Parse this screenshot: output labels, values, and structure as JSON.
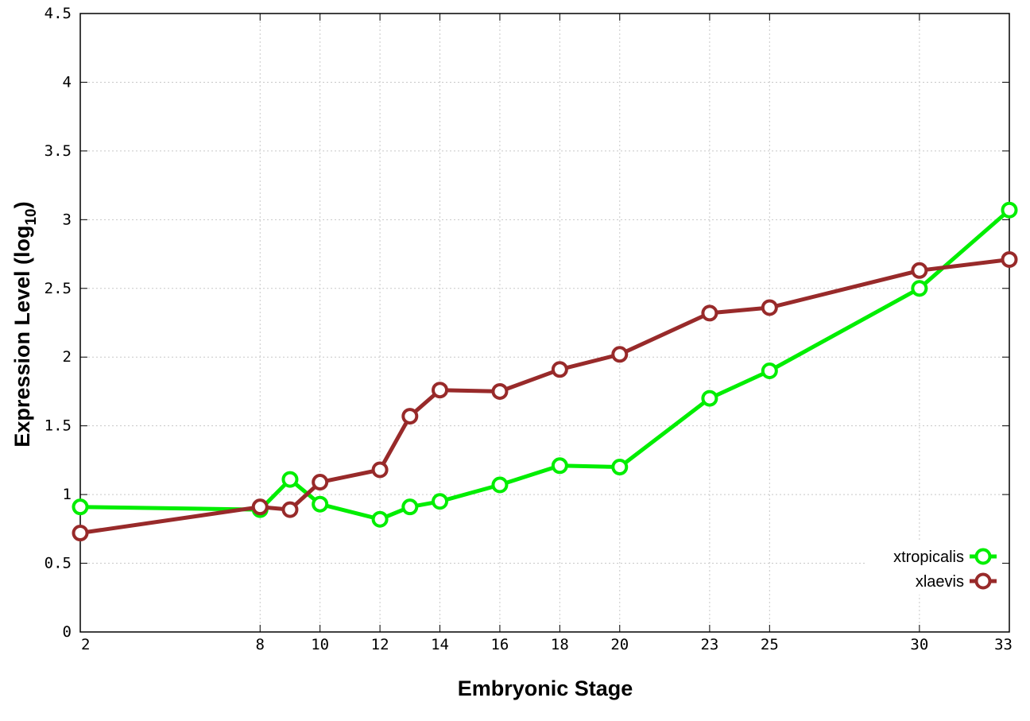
{
  "chart_data": {
    "type": "line",
    "title": "",
    "xlabel": "Embryonic Stage",
    "ylabel": "Expression Level (log",
    "ylabel_sub": "10",
    "ylabel_close": ")",
    "x": [
      2,
      8,
      9,
      10,
      12,
      13,
      14,
      16,
      18,
      20,
      23,
      25,
      30,
      33
    ],
    "xticks": [
      2,
      8,
      10,
      12,
      14,
      16,
      18,
      20,
      23,
      25,
      30,
      33
    ],
    "xlim": [
      2,
      33
    ],
    "ylim": [
      0,
      4.5
    ],
    "yticks": [
      "0",
      "0.5",
      "1",
      "1.5",
      "2",
      "2.5",
      "3",
      "3.5",
      "4",
      "4.5"
    ],
    "grid": true,
    "legend_position": "bottom-right",
    "series": [
      {
        "name": "xtropicalis",
        "color": "#00ee00",
        "values": [
          0.91,
          0.89,
          1.11,
          0.93,
          0.82,
          0.91,
          0.95,
          1.07,
          1.21,
          1.2,
          1.7,
          1.9,
          2.5,
          3.07
        ]
      },
      {
        "name": "xlaevis",
        "color": "#982a2a",
        "values": [
          0.72,
          0.91,
          0.89,
          1.09,
          1.18,
          1.57,
          1.76,
          1.75,
          1.91,
          2.02,
          2.32,
          2.36,
          2.63,
          2.71
        ]
      }
    ]
  }
}
